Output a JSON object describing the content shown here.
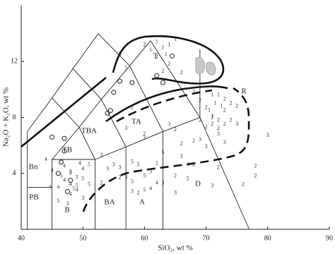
{
  "chart_data": {
    "type": "scatter",
    "xlabel": "SiO₂, wt %",
    "ylabel": "Na₂O + K₂O, wt %",
    "xlim": [
      40,
      90
    ],
    "ylim": [
      0,
      16
    ],
    "xticks": [
      40,
      50,
      60,
      70,
      80,
      90
    ],
    "yticks": [
      4,
      8,
      12
    ],
    "field_labels": [
      "T",
      "R",
      "TA",
      "TBA",
      "TB",
      "Bn",
      "PB",
      "B",
      "BA",
      "A",
      "D"
    ],
    "series": [
      {
        "marker": "circle",
        "color": "#222",
        "x": [
          45,
          47,
          47,
          46.5,
          48,
          46,
          47.5,
          55,
          54,
          54.5,
          56,
          58,
          62,
          63,
          64.5
        ],
        "values": [
          6.6,
          6.5,
          5.6,
          4.8,
          3.5,
          4,
          2.7,
          9.8,
          8.3,
          8.5,
          10.6,
          10.5,
          11,
          10.5,
          12.4
        ]
      },
      {
        "name": "1",
        "color": "#333",
        "x": [
          62,
          63,
          64,
          63.5,
          65,
          61,
          71,
          72,
          71.5,
          70.5,
          72.5,
          71
        ],
        "values": [
          13.4,
          13,
          13.2,
          12.5,
          13.6,
          12.8,
          9.6,
          9.6,
          9,
          8.5,
          8.8,
          8.1
        ]
      },
      {
        "name": "2",
        "color": "#333",
        "x": [
          60,
          62,
          64,
          66,
          63,
          68,
          69,
          70,
          71,
          72,
          73,
          74,
          72,
          73,
          70,
          74,
          75,
          69,
          71,
          73,
          68,
          58,
          65,
          60,
          66,
          68,
          72,
          78,
          78,
          76,
          62,
          53,
          65,
          59,
          56
        ],
        "values": [
          13.2,
          12.3,
          11.8,
          11.2,
          11.3,
          9.8,
          9.2,
          8.7,
          8,
          7.8,
          8.5,
          9,
          7.2,
          7.5,
          7.3,
          7.8,
          8.8,
          7.8,
          7.5,
          9.3,
          6.3,
          8.7,
          7.1,
          6.8,
          6.1,
          4.6,
          4.4,
          4.5,
          3.8,
          3.2,
          4.7,
          3.3,
          3.8,
          2.6,
          3.7
        ]
      },
      {
        "name": "3",
        "color": "#333",
        "x": [
          80,
          57,
          60,
          64,
          70,
          73,
          72,
          75,
          69,
          55,
          56,
          57,
          58,
          61,
          63,
          66,
          65,
          53,
          49,
          48,
          47.5,
          50,
          54,
          71
        ],
        "values": [
          6.7,
          7.2,
          6.5,
          7.5,
          5.9,
          6.2,
          6.8,
          7.5,
          6.4,
          4.6,
          4.4,
          3.7,
          2.7,
          4.1,
          3.3,
          5.2,
          2.6,
          5.3,
          3.7,
          4.1,
          1.8,
          2.2,
          4.3,
          3.1
        ]
      },
      {
        "name": "4",
        "color": "#333",
        "x": [
          44,
          45,
          44.7,
          46,
          47,
          48,
          49,
          49.5,
          47,
          48,
          50,
          61,
          62,
          67
        ],
        "values": [
          5,
          4.2,
          3,
          3,
          3.5,
          3.2,
          2.8,
          4.7,
          4.5,
          2.5,
          4.3,
          2.9,
          3.3,
          4.6
        ]
      },
      {
        "name": "5",
        "color": "#333",
        "x": [
          56,
          57,
          48,
          48.5,
          49,
          50,
          51,
          46,
          46.5,
          51,
          58,
          60,
          58,
          59,
          63,
          67,
          60
        ],
        "values": [
          12.5,
          11.5,
          4,
          2.9,
          3.1,
          3.6,
          3.2,
          2,
          3.8,
          4.6,
          4.8,
          3.8,
          3.4,
          4.6,
          5.5,
          3.6,
          2.8
        ]
      }
    ]
  }
}
